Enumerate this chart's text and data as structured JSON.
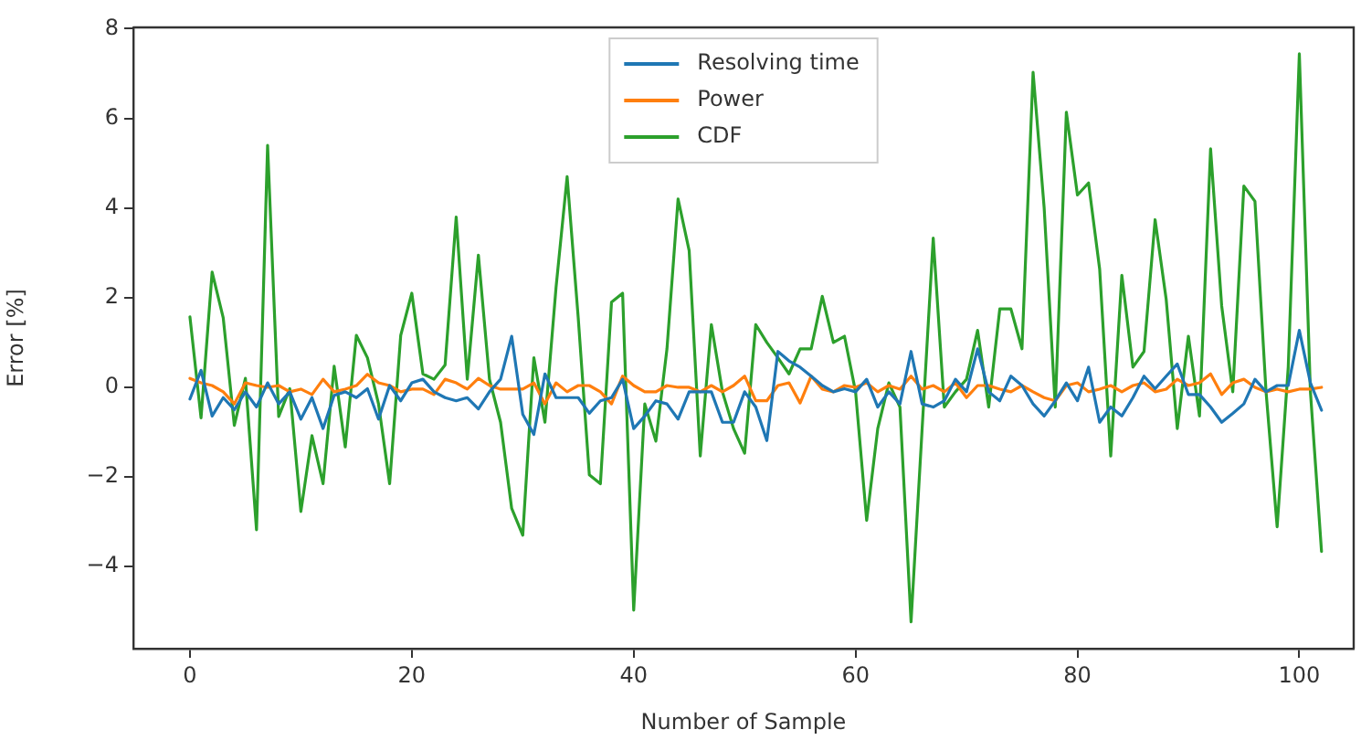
{
  "chart_data": {
    "type": "line",
    "xlabel": "Number of Sample",
    "ylabel": "Error [%]",
    "x": [
      0,
      1,
      2,
      3,
      4,
      5,
      6,
      7,
      8,
      9,
      10,
      11,
      12,
      13,
      14,
      15,
      16,
      17,
      18,
      19,
      20,
      21,
      22,
      23,
      24,
      25,
      26,
      27,
      28,
      29,
      30,
      31,
      32,
      33,
      34,
      35,
      36,
      37,
      38,
      39,
      40,
      41,
      42,
      43,
      44,
      45,
      46,
      47,
      48,
      49,
      50,
      51,
      52,
      53,
      54,
      55,
      56,
      57,
      58,
      59,
      60,
      61,
      62,
      63,
      64,
      65,
      66,
      67,
      68,
      69,
      70,
      71,
      72,
      73,
      74,
      75,
      76,
      77,
      78,
      79,
      80,
      81,
      82,
      83,
      84,
      85,
      86,
      87,
      88,
      89,
      90,
      91,
      92,
      93,
      94,
      95,
      96,
      97,
      98,
      99,
      100,
      101,
      102
    ],
    "series": [
      {
        "name": "Resolving time",
        "color": "#1f77b4",
        "values": [
          -0.26,
          0.38,
          -0.64,
          -0.23,
          -0.5,
          -0.1,
          -0.44,
          0.1,
          -0.37,
          -0.1,
          -0.71,
          -0.23,
          -0.92,
          -0.18,
          -0.1,
          -0.23,
          -0.03,
          -0.71,
          0.04,
          -0.3,
          0.1,
          0.18,
          -0.1,
          -0.23,
          -0.3,
          -0.23,
          -0.48,
          -0.1,
          0.18,
          1.14,
          -0.6,
          -1.05,
          0.3,
          -0.23,
          -0.23,
          -0.23,
          -0.58,
          -0.3,
          -0.23,
          0.18,
          -0.92,
          -0.64,
          -0.3,
          -0.37,
          -0.71,
          -0.1,
          -0.1,
          -0.1,
          -0.78,
          -0.78,
          -0.1,
          -0.44,
          -1.19,
          0.8,
          0.59,
          0.45,
          0.25,
          0.04,
          -0.1,
          -0.03,
          -0.1,
          0.18,
          -0.44,
          -0.1,
          -0.37,
          0.8,
          -0.37,
          -0.44,
          -0.3,
          0.18,
          -0.1,
          0.86,
          -0.1,
          -0.3,
          0.25,
          0.04,
          -0.37,
          -0.64,
          -0.3,
          0.1,
          -0.3,
          0.45,
          -0.78,
          -0.44,
          -0.64,
          -0.23,
          0.25,
          -0.03,
          0.25,
          0.52,
          -0.16,
          -0.16,
          -0.44,
          -0.78,
          -0.58,
          -0.37,
          0.18,
          -0.1,
          0.04,
          0.04,
          1.27,
          0.1,
          -0.51
        ]
      },
      {
        "name": "Power",
        "color": "#ff7f0e",
        "values": [
          0.2,
          0.1,
          0.04,
          -0.1,
          -0.37,
          0.1,
          0.04,
          0,
          0.04,
          -0.1,
          -0.04,
          -0.16,
          0.18,
          -0.1,
          -0.04,
          0.04,
          0.29,
          0.1,
          0.04,
          -0.1,
          -0.04,
          -0.04,
          -0.16,
          0.18,
          0.1,
          -0.04,
          0.2,
          0.04,
          -0.04,
          -0.04,
          -0.04,
          0.1,
          -0.37,
          0.1,
          -0.1,
          0.04,
          0.04,
          -0.1,
          -0.37,
          0.25,
          0.04,
          -0.1,
          -0.1,
          0.04,
          0,
          0,
          -0.1,
          0.04,
          -0.1,
          0.04,
          0.25,
          -0.3,
          -0.3,
          0.04,
          0.1,
          -0.35,
          0.25,
          -0.04,
          -0.1,
          0.04,
          0,
          0.1,
          -0.1,
          0.04,
          -0.04,
          0.25,
          -0.04,
          0.04,
          -0.1,
          0.1,
          -0.23,
          0.04,
          0.04,
          -0.04,
          -0.1,
          0.04,
          -0.1,
          -0.23,
          -0.3,
          0.04,
          0.1,
          -0.1,
          -0.04,
          0.04,
          -0.1,
          0.04,
          0.1,
          -0.1,
          -0.04,
          0.18,
          0.04,
          0.1,
          0.3,
          -0.16,
          0.1,
          0.18,
          0,
          -0.1,
          -0.04,
          -0.1,
          -0.04,
          -0.04,
          0
        ]
      },
      {
        "name": "CDF",
        "color": "#2ca02c",
        "values": [
          1.57,
          -0.68,
          2.57,
          1.55,
          -0.85,
          0.2,
          -3.18,
          5.4,
          -0.65,
          -0.03,
          -2.77,
          -1.08,
          -2.15,
          0.47,
          -1.33,
          1.16,
          0.66,
          -0.37,
          -2.15,
          1.16,
          2.1,
          0.3,
          0.18,
          0.5,
          3.8,
          0.18,
          2.95,
          0.18,
          -0.78,
          -2.7,
          -3.3,
          0.66,
          -0.78,
          2.23,
          4.7,
          1.55,
          -1.95,
          -2.15,
          1.9,
          2.1,
          -4.97,
          -0.37,
          -1.2,
          0.86,
          4.2,
          3.05,
          -1.53,
          1.4,
          -0.1,
          -0.92,
          -1.47,
          1.4,
          1.0,
          0.66,
          0.3,
          0.86,
          0.86,
          2.03,
          1.0,
          1.14,
          -0.1,
          -2.97,
          -0.92,
          0.1,
          -0.44,
          -5.23,
          -0.92,
          3.33,
          -0.44,
          -0.1,
          0.18,
          1.27,
          -0.44,
          1.75,
          1.75,
          0.86,
          7.03,
          4.0,
          -0.44,
          6.14,
          4.29,
          4.56,
          2.64,
          -1.53,
          2.5,
          0.45,
          0.8,
          3.74,
          1.96,
          -0.92,
          1.14,
          -0.64,
          5.32,
          1.82,
          -0.1,
          4.49,
          4.15,
          -0.1,
          -3.11,
          0.45,
          7.44,
          -0.1,
          -3.66
        ]
      }
    ],
    "xlim": [
      -5.1,
      104.9
    ],
    "xticks": [
      0,
      20,
      40,
      60,
      80,
      100
    ],
    "ylim": [
      -5.83,
      8.03
    ],
    "yticks": [
      -4,
      -2,
      0,
      2,
      4,
      6,
      8
    ],
    "grid": false,
    "legend": "top",
    "marker": "none",
    "line_style": "solid"
  }
}
